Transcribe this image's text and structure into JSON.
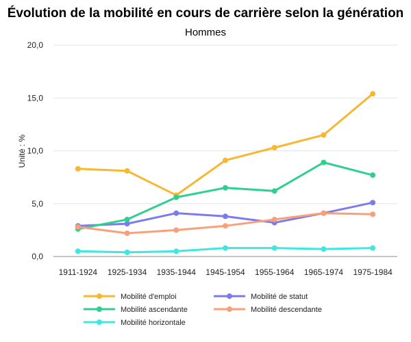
{
  "chart_data": {
    "type": "line",
    "title": "Évolution de la mobilité en cours de carrière selon la génération",
    "subtitle": "Hommes",
    "xlabel": "",
    "ylabel": "Unité : %",
    "categories": [
      "1911-1924",
      "1925-1934",
      "1935-1944",
      "1945-1954",
      "1955-1964",
      "1965-1974",
      "1975-1984"
    ],
    "ylim": [
      0,
      20
    ],
    "yticks": [
      "0,0",
      "5,0",
      "10,0",
      "15,0",
      "20,0"
    ],
    "ytick_values": [
      0,
      5,
      10,
      15,
      20
    ],
    "grid": true,
    "legend_position": "bottom",
    "series": [
      {
        "name": "Mobilité d'emploi",
        "color": "#F7B731",
        "values": [
          8.3,
          8.1,
          5.8,
          9.1,
          10.3,
          11.5,
          15.4
        ]
      },
      {
        "name": "Mobilité de statut",
        "color": "#7B7BEE",
        "values": [
          2.9,
          3.1,
          4.1,
          3.8,
          3.2,
          4.1,
          5.1
        ]
      },
      {
        "name": "Mobilité ascendante",
        "color": "#2ED08E",
        "values": [
          2.6,
          3.5,
          5.6,
          6.5,
          6.2,
          8.9,
          7.7
        ]
      },
      {
        "name": "Mobilité descendante",
        "color": "#F9A07A",
        "values": [
          2.8,
          2.2,
          2.5,
          2.9,
          3.5,
          4.1,
          4.0
        ]
      },
      {
        "name": "Mobilité horizontale",
        "color": "#3EE8E0",
        "values": [
          0.5,
          0.4,
          0.5,
          0.8,
          0.8,
          0.7,
          0.8
        ]
      }
    ]
  }
}
